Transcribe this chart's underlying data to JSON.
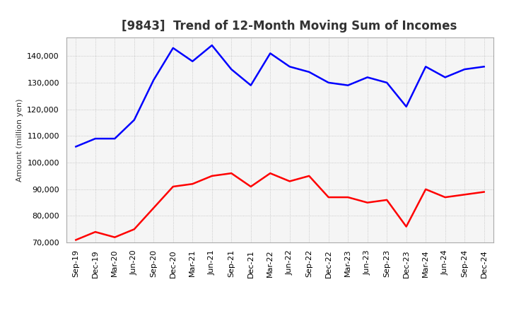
{
  "title": "[9843]  Trend of 12-Month Moving Sum of Incomes",
  "ylabel": "Amount (million yen)",
  "background_color": "#ffffff",
  "plot_bg_color": "#f5f5f5",
  "grid_color": "#bbbbbb",
  "title_color": "#333333",
  "x_labels": [
    "Sep-19",
    "Dec-19",
    "Mar-20",
    "Jun-20",
    "Sep-20",
    "Dec-20",
    "Mar-21",
    "Jun-21",
    "Sep-21",
    "Dec-21",
    "Mar-22",
    "Jun-22",
    "Sep-22",
    "Dec-22",
    "Mar-23",
    "Jun-23",
    "Sep-23",
    "Dec-23",
    "Mar-24",
    "Jun-24",
    "Sep-24",
    "Dec-24"
  ],
  "ordinary_income": [
    106000,
    109000,
    109000,
    116000,
    131000,
    143000,
    138000,
    144000,
    135000,
    129000,
    141000,
    136000,
    134000,
    130000,
    129000,
    132000,
    130000,
    121000,
    136000,
    132000,
    135000,
    136000
  ],
  "net_income": [
    71000,
    74000,
    72000,
    75000,
    83000,
    91000,
    92000,
    95000,
    96000,
    91000,
    96000,
    93000,
    95000,
    87000,
    87000,
    85000,
    86000,
    76000,
    90000,
    87000,
    88000,
    89000
  ],
  "ordinary_color": "#0000ff",
  "net_color": "#ff0000",
  "ylim_min": 70000,
  "ylim_max": 147000,
  "yticks": [
    70000,
    80000,
    90000,
    100000,
    110000,
    120000,
    130000,
    140000
  ],
  "line_width": 1.8,
  "title_fontsize": 12,
  "tick_fontsize": 8,
  "ylabel_fontsize": 8,
  "legend_fontsize": 9
}
